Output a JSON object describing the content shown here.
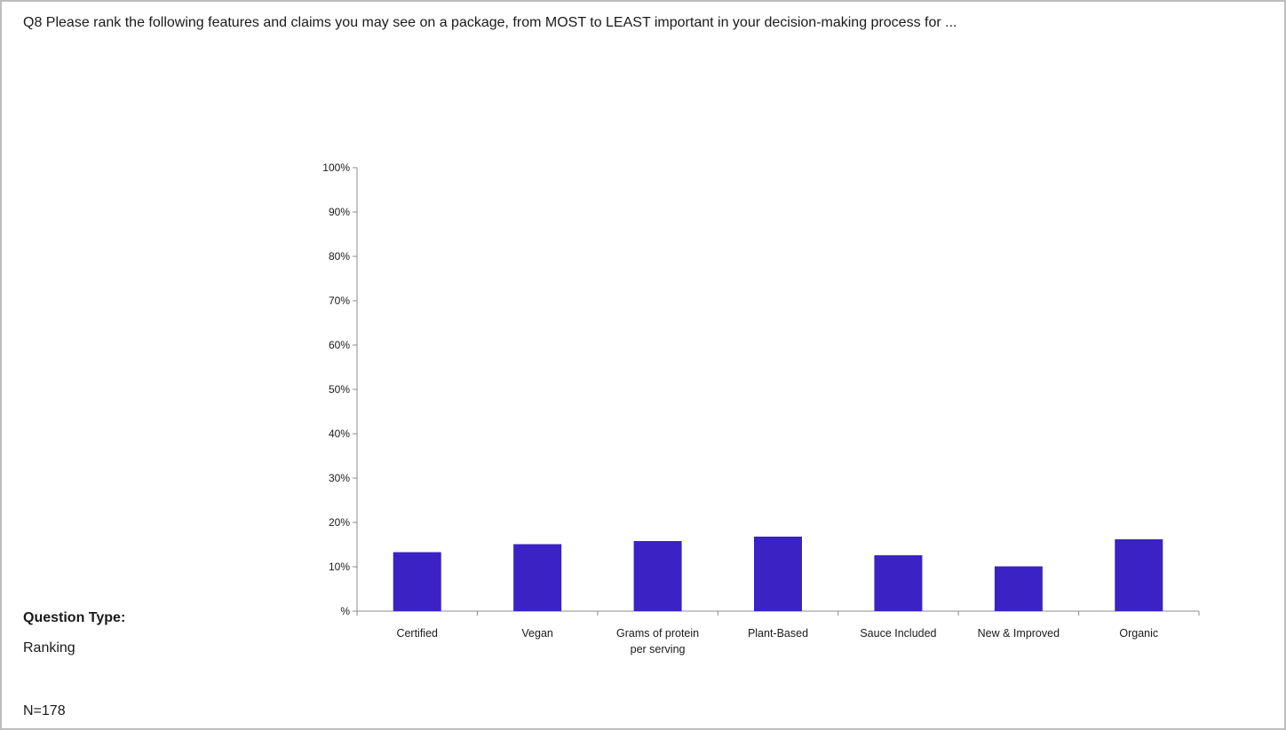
{
  "question": "Q8 Please rank the following features and claims you may see on a package, from MOST to LEAST important in your decision-making process for ...",
  "question_type_label": "Question Type:",
  "question_type_value": "Ranking",
  "n_label": "N=178",
  "colors": {
    "bar": "#3a22c4",
    "axis": "#8c8c8c"
  },
  "chart_data": {
    "type": "bar",
    "categories": [
      [
        "Certified"
      ],
      [
        "Vegan"
      ],
      [
        "Grams of protein",
        "per serving"
      ],
      [
        "Plant-Based"
      ],
      [
        "Sauce Included"
      ],
      [
        "New & Improved"
      ],
      [
        "Organic"
      ]
    ],
    "values": [
      13.3,
      15.1,
      15.8,
      16.8,
      12.6,
      10.1,
      16.2
    ],
    "yticks": [
      "%",
      "10%",
      "20%",
      "30%",
      "40%",
      "50%",
      "60%",
      "70%",
      "80%",
      "90%",
      "100%"
    ],
    "ylim": [
      0,
      100
    ],
    "grid": false,
    "legend": "none"
  }
}
